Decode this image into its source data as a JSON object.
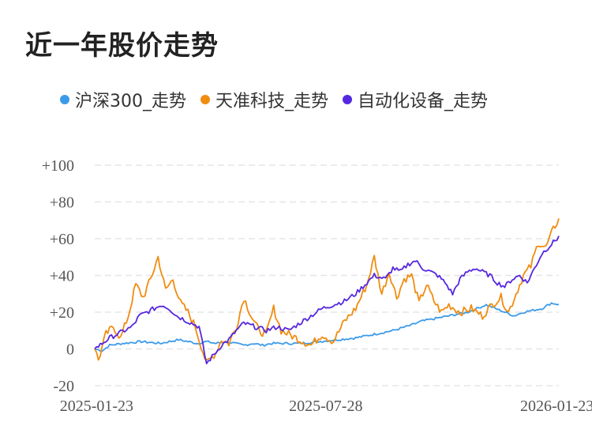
{
  "chart_data": {
    "type": "line",
    "title": "近一年股价走势",
    "legend_position": "top",
    "grid": true,
    "x_ticks": [
      "2025-01-23",
      "2025-07-28",
      "2026-01-23"
    ],
    "y_ticks": [
      "+100",
      "+80",
      "+60",
      "+40",
      "+20",
      "0",
      "-20"
    ],
    "y_tick_values": [
      100,
      80,
      60,
      40,
      20,
      0,
      -20
    ],
    "ylim": [
      -20,
      100
    ],
    "n_points": 250,
    "series": [
      {
        "name": "沪深300_走势",
        "color": "#3c9be9",
        "keypoints": [
          [
            0,
            0
          ],
          [
            4,
            -1
          ],
          [
            8,
            2
          ],
          [
            15,
            3
          ],
          [
            25,
            4
          ],
          [
            35,
            3
          ],
          [
            45,
            5
          ],
          [
            50,
            4
          ],
          [
            55,
            3
          ],
          [
            60,
            4
          ],
          [
            65,
            3
          ],
          [
            70,
            4
          ],
          [
            75,
            3
          ],
          [
            80,
            2
          ],
          [
            85,
            3
          ],
          [
            90,
            2
          ],
          [
            95,
            3
          ],
          [
            100,
            3
          ],
          [
            110,
            3
          ],
          [
            120,
            4
          ],
          [
            130,
            5
          ],
          [
            140,
            6
          ],
          [
            150,
            8
          ],
          [
            160,
            10
          ],
          [
            170,
            13
          ],
          [
            175,
            15
          ],
          [
            180,
            16
          ],
          [
            190,
            18
          ],
          [
            200,
            20
          ],
          [
            205,
            22
          ],
          [
            210,
            24
          ],
          [
            215,
            22
          ],
          [
            220,
            20
          ],
          [
            225,
            18
          ],
          [
            230,
            20
          ],
          [
            235,
            21
          ],
          [
            240,
            22
          ],
          [
            245,
            25
          ],
          [
            250,
            24
          ]
        ]
      },
      {
        "name": "天准科技_走势",
        "color": "#f08c10",
        "keypoints": [
          [
            0,
            0
          ],
          [
            2,
            -6
          ],
          [
            6,
            8
          ],
          [
            10,
            12
          ],
          [
            14,
            6
          ],
          [
            18,
            18
          ],
          [
            22,
            35
          ],
          [
            26,
            28
          ],
          [
            30,
            38
          ],
          [
            34,
            50
          ],
          [
            38,
            32
          ],
          [
            42,
            38
          ],
          [
            46,
            25
          ],
          [
            50,
            20
          ],
          [
            54,
            12
          ],
          [
            60,
            -8
          ],
          [
            65,
            -2
          ],
          [
            68,
            5
          ],
          [
            72,
            3
          ],
          [
            76,
            12
          ],
          [
            80,
            28
          ],
          [
            84,
            18
          ],
          [
            88,
            10
          ],
          [
            92,
            8
          ],
          [
            96,
            22
          ],
          [
            100,
            10
          ],
          [
            104,
            8
          ],
          [
            110,
            5
          ],
          [
            116,
            2
          ],
          [
            122,
            8
          ],
          [
            128,
            4
          ],
          [
            134,
            15
          ],
          [
            140,
            22
          ],
          [
            146,
            35
          ],
          [
            150,
            50
          ],
          [
            154,
            30
          ],
          [
            158,
            42
          ],
          [
            162,
            28
          ],
          [
            166,
            38
          ],
          [
            170,
            40
          ],
          [
            174,
            25
          ],
          [
            178,
            35
          ],
          [
            182,
            26
          ],
          [
            186,
            20
          ],
          [
            190,
            24
          ],
          [
            196,
            20
          ],
          [
            202,
            22
          ],
          [
            208,
            18
          ],
          [
            214,
            25
          ],
          [
            218,
            28
          ],
          [
            222,
            20
          ],
          [
            226,
            30
          ],
          [
            230,
            40
          ],
          [
            234,
            45
          ],
          [
            238,
            58
          ],
          [
            242,
            55
          ],
          [
            246,
            65
          ],
          [
            250,
            73
          ]
        ]
      },
      {
        "name": "自动化设备_走势",
        "color": "#5528e0",
        "keypoints": [
          [
            0,
            0
          ],
          [
            4,
            3
          ],
          [
            8,
            6
          ],
          [
            12,
            8
          ],
          [
            16,
            10
          ],
          [
            20,
            12
          ],
          [
            24,
            18
          ],
          [
            28,
            20
          ],
          [
            32,
            22
          ],
          [
            36,
            24
          ],
          [
            40,
            22
          ],
          [
            44,
            18
          ],
          [
            48,
            16
          ],
          [
            52,
            14
          ],
          [
            56,
            12
          ],
          [
            60,
            -8
          ],
          [
            64,
            -3
          ],
          [
            68,
            2
          ],
          [
            72,
            5
          ],
          [
            76,
            10
          ],
          [
            80,
            14
          ],
          [
            86,
            12
          ],
          [
            92,
            10
          ],
          [
            98,
            12
          ],
          [
            104,
            10
          ],
          [
            110,
            14
          ],
          [
            116,
            18
          ],
          [
            122,
            22
          ],
          [
            128,
            24
          ],
          [
            134,
            26
          ],
          [
            140,
            30
          ],
          [
            146,
            36
          ],
          [
            150,
            40
          ],
          [
            156,
            38
          ],
          [
            160,
            44
          ],
          [
            164,
            42
          ],
          [
            168,
            46
          ],
          [
            172,
            48
          ],
          [
            176,
            44
          ],
          [
            180,
            42
          ],
          [
            184,
            40
          ],
          [
            188,
            36
          ],
          [
            192,
            30
          ],
          [
            196,
            38
          ],
          [
            200,
            42
          ],
          [
            204,
            44
          ],
          [
            208,
            42
          ],
          [
            212,
            40
          ],
          [
            216,
            36
          ],
          [
            220,
            34
          ],
          [
            224,
            38
          ],
          [
            228,
            40
          ],
          [
            232,
            36
          ],
          [
            236,
            44
          ],
          [
            240,
            52
          ],
          [
            244,
            56
          ],
          [
            248,
            60
          ],
          [
            250,
            63
          ]
        ]
      }
    ]
  }
}
